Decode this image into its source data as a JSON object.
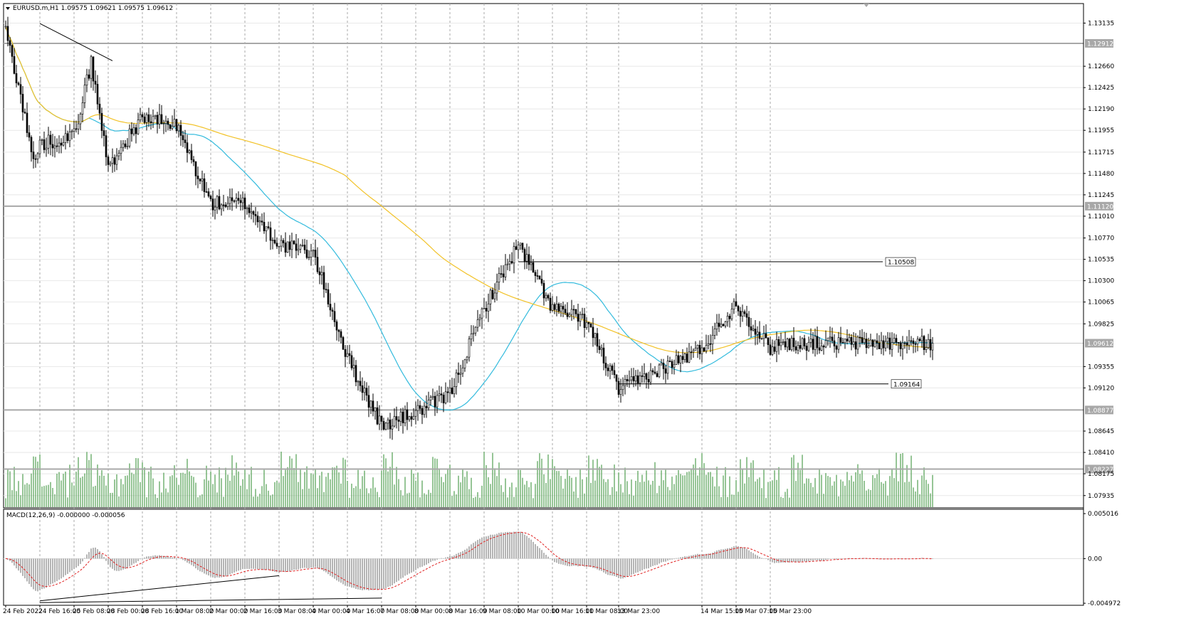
{
  "symbol_header": "EURUSD.m,H1  1.09575 1.09621 1.09575 1.09612",
  "macd_header": "MACD(12,26,9) -0.000000 -0.000056",
  "colors": {
    "background": "#ffffff",
    "grid": "#a8a8a8",
    "candles": "#000000",
    "ma_fast": "#33bbdd",
    "ma_slow": "#f2c227",
    "volume": "#2e8b2e",
    "macd_hist": "#b4b4b4",
    "macd_signal": "#e02020",
    "level_line": "#a8a8a8",
    "price_tag_bg": "#a8a8a8",
    "price_tag_text": "#ffffff"
  },
  "chart_data": {
    "type": "candlestick",
    "main_panel": {
      "yticks": [
        "1.13135",
        "1.12660",
        "1.12425",
        "1.12190",
        "1.11955",
        "1.11715",
        "1.11480",
        "1.11245",
        "1.11010",
        "1.10770",
        "1.10535",
        "1.10300",
        "1.10065",
        "1.09825",
        "1.09355",
        "1.09120",
        "1.08645",
        "1.08410",
        "1.08175",
        "1.07935"
      ],
      "ylim": [
        1.078,
        1.1335
      ],
      "levels": [
        "1.12912",
        "1.11120",
        "1.08877",
        "1.08227"
      ],
      "current_price": "1.09612",
      "annotations": [
        {
          "label": "1.10508",
          "price": 1.10508,
          "from_time": "10 Mar 00:00"
        },
        {
          "label": "1.09164",
          "price": 1.09164,
          "from_time": "13 Mar 23:00"
        }
      ],
      "trendlines": [
        {
          "from": [
            "24 Feb 16:00",
            1.1313
          ],
          "to": [
            "25 Feb 16:00",
            1.1272
          ]
        }
      ],
      "moving_averages": [
        "fast (blue)",
        "slow (yellow)"
      ]
    },
    "time_axis": [
      "24 Feb 2022",
      "24 Feb 16:00",
      "25 Feb 08:00",
      "28 Feb 00:00",
      "28 Feb 16:00",
      "1 Mar 08:00",
      "2 Mar 00:00",
      "2 Mar 16:00",
      "3 Mar 08:00",
      "4 Mar 00:00",
      "4 Mar 16:00",
      "7 Mar 08:00",
      "8 Mar 00:00",
      "8 Mar 16:00",
      "9 Mar 08:00",
      "10 Mar 00:00",
      "10 Mar 16:00",
      "11 Mar 08:00",
      "13 Mar 23:00",
      "14 Mar 15:00",
      "15 Mar 07:00",
      "15 Mar 23:00"
    ],
    "price_path": {
      "x_time": [
        "24 Feb 2022",
        "24 Feb 06:00",
        "24 Feb 13:00",
        "24 Feb 16:00",
        "25 Feb 08:00",
        "25 Feb 16:00",
        "28 Feb 00:00",
        "28 Feb 16:00",
        "1 Mar 08:00",
        "2 Mar 00:00",
        "2 Mar 16:00",
        "3 Mar 08:00",
        "4 Mar 00:00",
        "4 Mar 16:00",
        "7 Mar 08:00",
        "8 Mar 00:00",
        "8 Mar 16:00",
        "9 Mar 08:00",
        "10 Mar 00:00",
        "10 Mar 16:00",
        "11 Mar 08:00",
        "13 Mar 23:00",
        "14 Mar 15:00",
        "15 Mar 07:00",
        "15 Mar 23:00",
        "16 Mar 02:00"
      ],
      "y_close": [
        1.1305,
        1.1245,
        1.116,
        1.118,
        1.119,
        1.127,
        1.1155,
        1.121,
        1.12,
        1.1115,
        1.1115,
        1.107,
        1.106,
        1.0945,
        1.087,
        1.0885,
        1.0905,
        1.1,
        1.107,
        1.1,
        1.0985,
        1.091,
        1.0955,
        1.1005,
        1.0955,
        1.0961
      ]
    },
    "volume": {
      "note": "green volume bars at bottom of main panel"
    },
    "macd_panel": {
      "yticks": [
        "0.005016",
        "0.00",
        "-0.004972"
      ],
      "ylim": [
        -0.0052,
        0.0055
      ],
      "trendlines": [
        {
          "from": [
            "24 Feb 16:00",
            -0.0047
          ],
          "to": [
            "3 Mar 08:00",
            -0.0019
          ]
        },
        {
          "from": [
            "24 Feb 16:00",
            -0.0049
          ],
          "to": [
            "7 Mar 08:00",
            -0.0044
          ]
        }
      ]
    }
  }
}
